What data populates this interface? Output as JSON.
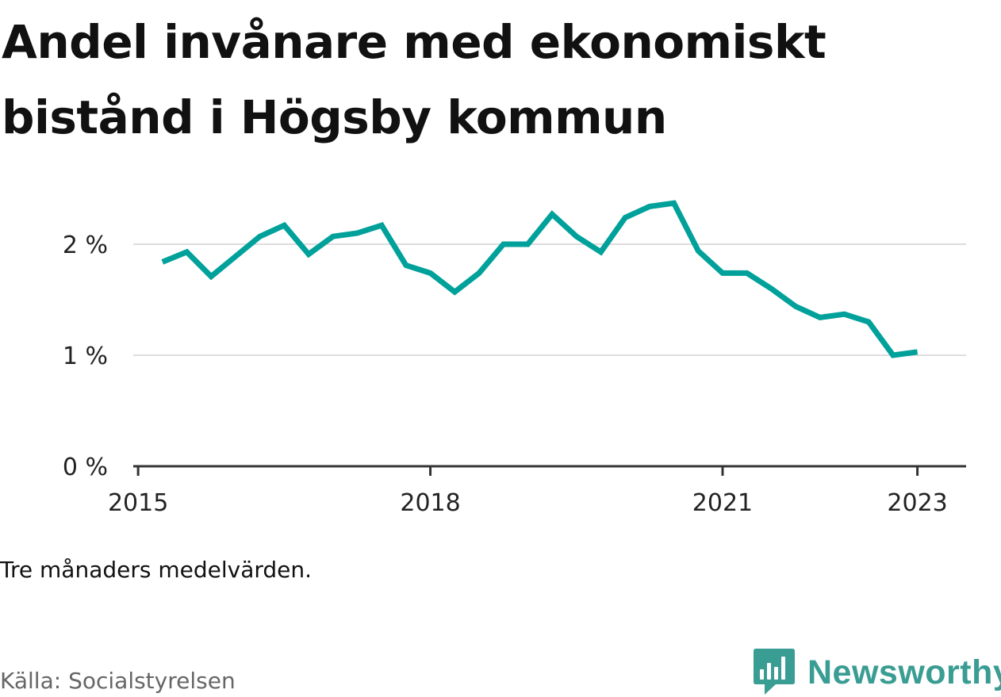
{
  "title": "Andel invånare med ekonomiskt bistånd i Högsby kommun",
  "note": "Tre månaders medelvärden.",
  "source": "Källa: Socialstyrelsen",
  "brand": {
    "name": "Newsworthy",
    "icon": "newsworthy-logo-icon",
    "color": "#3a9d93"
  },
  "colors": {
    "line": "#00a19a",
    "grid": "#dddddd",
    "axis": "#333333"
  },
  "chart_data": {
    "type": "line",
    "title": "Andel invånare med ekonomiskt bistånd i Högsby kommun",
    "xlabel": "",
    "ylabel": "",
    "ylim": [
      0,
      2.5
    ],
    "xlim": [
      2014.95,
      2023.5
    ],
    "grid": true,
    "y_ticks": [
      {
        "value": 0,
        "label": "0 %"
      },
      {
        "value": 1,
        "label": "1 %"
      },
      {
        "value": 2,
        "label": "2 %"
      }
    ],
    "x_ticks": [
      {
        "value": 2015,
        "label": "2015"
      },
      {
        "value": 2018,
        "label": "2018"
      },
      {
        "value": 2021,
        "label": "2021"
      },
      {
        "value": 2023,
        "label": "2023"
      }
    ],
    "series": [
      {
        "x": [
          2015.25,
          2015.5,
          2015.75,
          2016.0,
          2016.25,
          2016.5,
          2016.75,
          2017.0,
          2017.25,
          2017.5,
          2017.75,
          2018.0,
          2018.25,
          2018.5,
          2018.75,
          2019.0,
          2019.25,
          2019.5,
          2019.75,
          2020.0,
          2020.25,
          2020.5,
          2020.75,
          2021.0,
          2021.25,
          2021.5,
          2021.75,
          2022.0,
          2022.25,
          2022.5,
          2022.75,
          2023.0
        ],
        "values": [
          1.84,
          1.93,
          1.71,
          1.89,
          2.07,
          2.17,
          1.91,
          2.07,
          2.1,
          2.17,
          1.81,
          1.74,
          1.57,
          1.74,
          2.0,
          2.0,
          2.27,
          2.07,
          1.93,
          2.24,
          2.34,
          2.37,
          1.94,
          1.74,
          1.74,
          1.6,
          1.44,
          1.34,
          1.37,
          1.3,
          1.0,
          1.03
        ]
      }
    ]
  }
}
